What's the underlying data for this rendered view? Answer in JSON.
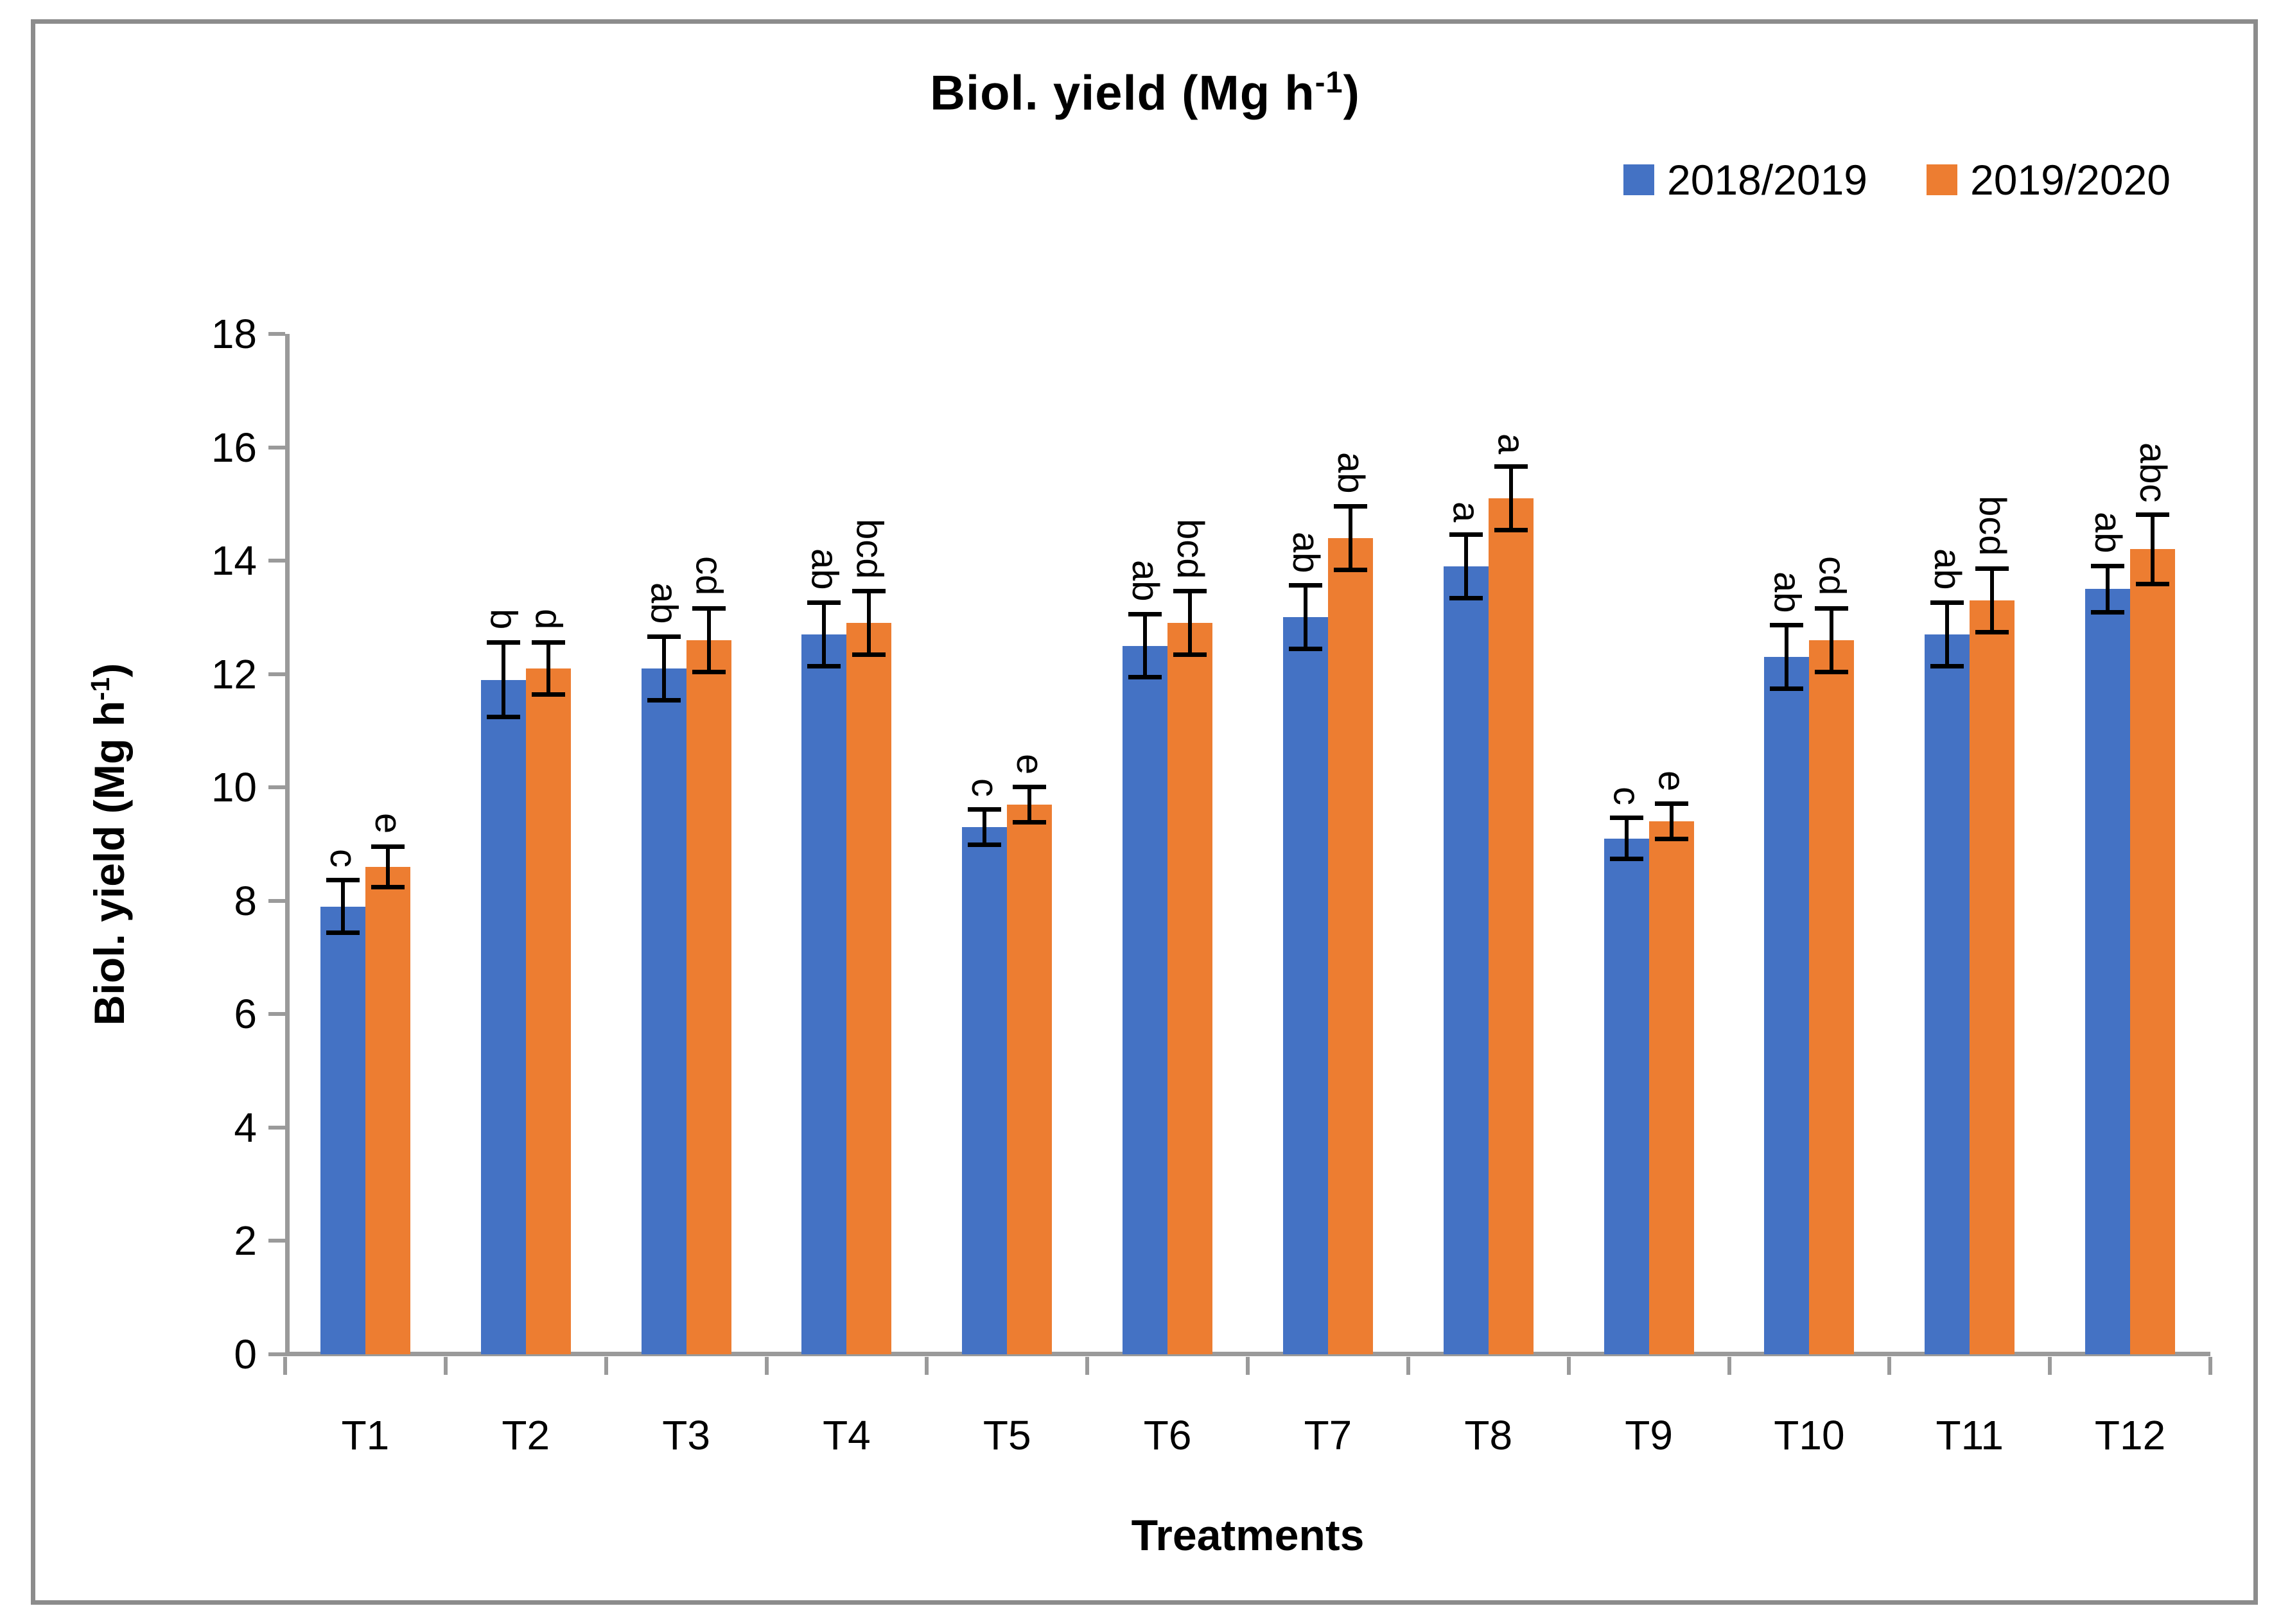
{
  "page": {
    "background": "#ffffff",
    "border_color": "#8c8c8c"
  },
  "title": {
    "prefix": "Biol. yield (Mg h",
    "superscript": "-1",
    "suffix": ")",
    "full": "Biol. yield (Mg h-1)"
  },
  "legend": {
    "position": "top-right",
    "items": [
      {
        "label": "2018/2019",
        "color": "#4472C4"
      },
      {
        "label": "2019/2020",
        "color": "#ED7D31"
      }
    ]
  },
  "x_axis": {
    "title": "Treatments"
  },
  "y_axis": {
    "title_prefix": "Biol. yield (Mg h",
    "title_superscript": "-1",
    "title_suffix": ")",
    "min": 0,
    "max": 18,
    "step": 2,
    "tick_labels": [
      "0",
      "2",
      "4",
      "6",
      "8",
      "10",
      "12",
      "14",
      "16",
      "18"
    ]
  },
  "colors": {
    "axis_line": "#9a9a9a",
    "error_bar": "#000000",
    "text": "#000000"
  },
  "chart_data": {
    "type": "bar",
    "title": "Biol. yield (Mg h-1)",
    "xlabel": "Treatments",
    "ylabel": "Biol. yield (Mg h-1)",
    "ylim": [
      0,
      18
    ],
    "ytick_step": 2,
    "grid": false,
    "legend_position": "top-right",
    "error_bars": true,
    "categories": [
      "T1",
      "T2",
      "T3",
      "T4",
      "T5",
      "T6",
      "T7",
      "T8",
      "T9",
      "T10",
      "T11",
      "T12"
    ],
    "series": [
      {
        "name": "2018/2019",
        "color": "#4472C4",
        "values": [
          7.9,
          11.9,
          12.1,
          12.7,
          9.3,
          12.5,
          13.0,
          13.9,
          9.1,
          12.3,
          12.7,
          13.5
        ],
        "errors": [
          0.5,
          0.7,
          0.6,
          0.6,
          0.35,
          0.6,
          0.6,
          0.6,
          0.4,
          0.6,
          0.6,
          0.45
        ],
        "letters": [
          "c",
          "b",
          "ab",
          "ab",
          "c",
          "ab",
          "ab",
          "a",
          "c",
          "ab",
          "ab",
          "ab"
        ]
      },
      {
        "name": "2019/2020",
        "color": "#ED7D31",
        "values": [
          8.6,
          12.1,
          12.6,
          12.9,
          9.7,
          12.9,
          14.4,
          15.1,
          9.4,
          12.6,
          13.3,
          14.2
        ],
        "errors": [
          0.4,
          0.5,
          0.6,
          0.6,
          0.35,
          0.6,
          0.6,
          0.6,
          0.35,
          0.6,
          0.6,
          0.65
        ],
        "letters": [
          "e",
          "d",
          "cd",
          "bcd",
          "e",
          "bcd",
          "ab",
          "a",
          "e",
          "cd",
          "bcd",
          "abc"
        ]
      }
    ]
  }
}
